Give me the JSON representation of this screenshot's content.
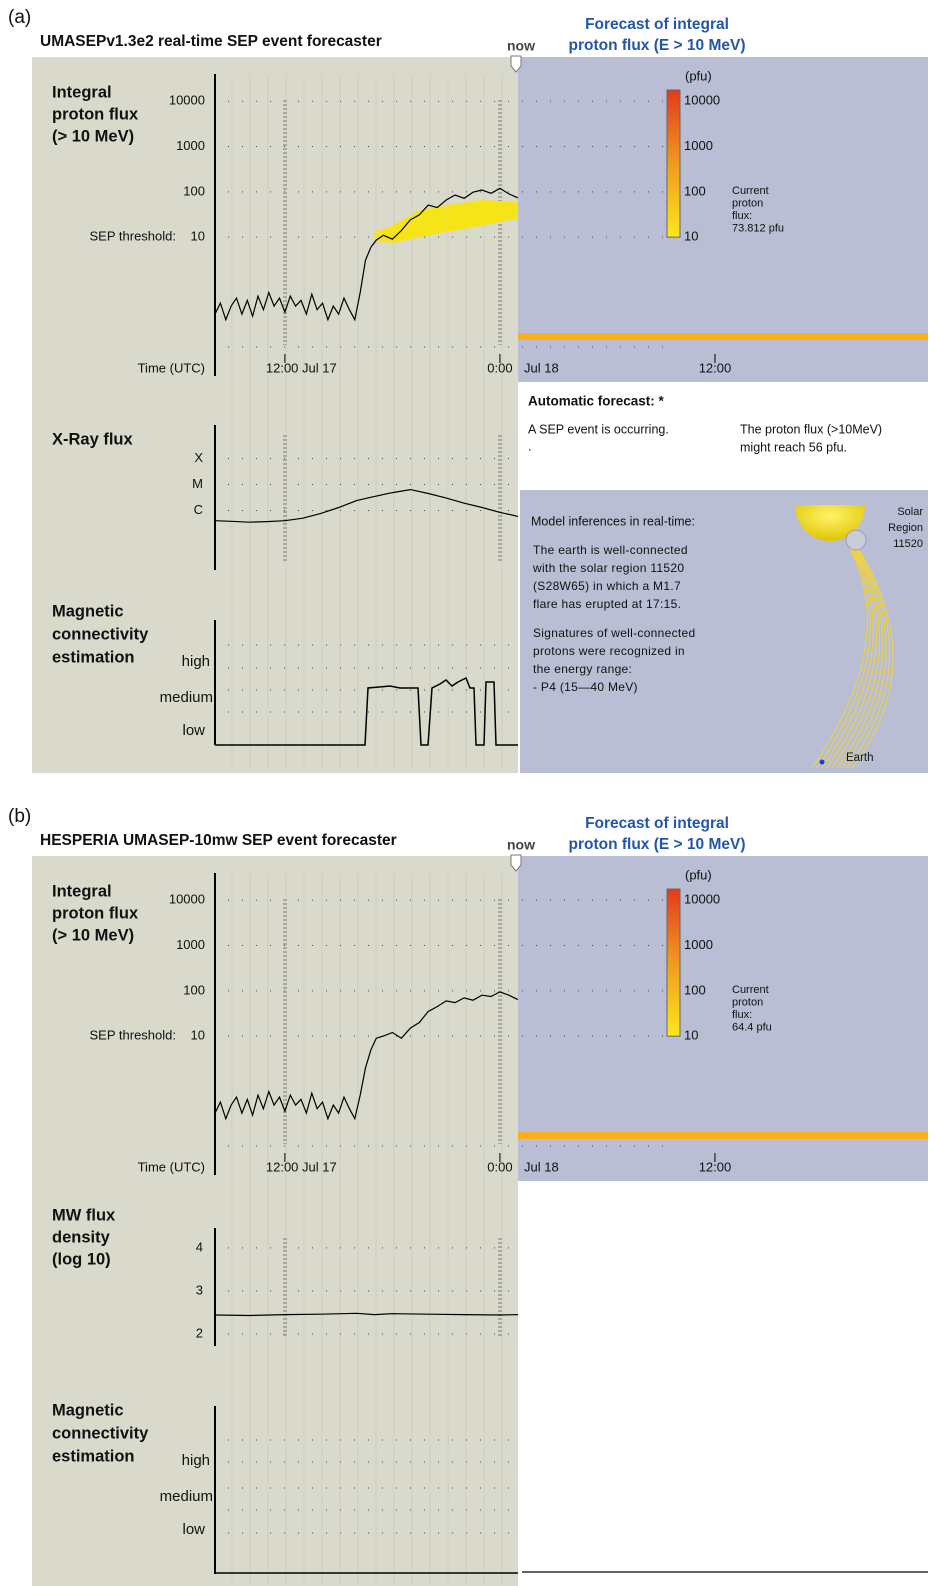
{
  "panels": [
    {
      "label": "(a)",
      "title": "UMASEPv1.3e2 real-time SEP event forecaster",
      "now_label": "now",
      "forecast_title": [
        "Forecast of integral",
        "proton flux (E > 10 MeV)"
      ],
      "flux_chart": {
        "type": "line",
        "ylabel": [
          "Integral",
          "proton flux",
          "(> 10 MeV)"
        ],
        "threshold_label": "SEP threshold:",
        "xlabel": "Time (UTC)",
        "log_scale": true,
        "ylim": [
          0.01,
          40000
        ],
        "yticks": [
          10000,
          1000,
          100,
          10
        ],
        "xlim": [
          8.1,
          48
        ],
        "xticks": [
          {
            "value": 12,
            "label": "12:00 Jul 17"
          },
          {
            "value": 24,
            "label": "0:00"
          },
          {
            "value": 36,
            "label": "12:00"
          }
        ],
        "date_label": "Jul 18",
        "color": "#000000",
        "x": [
          8.1,
          8.4,
          8.7,
          9.0,
          9.3,
          9.6,
          9.9,
          10.2,
          10.5,
          10.8,
          11.1,
          11.4,
          11.7,
          12.0,
          12.3,
          12.6,
          12.9,
          13.2,
          13.5,
          13.8,
          14.1,
          14.4,
          14.7,
          15.0,
          15.3,
          15.6,
          15.9,
          16.2,
          16.5,
          16.8,
          17.1,
          17.5,
          18.0,
          18.5,
          19.0,
          19.5,
          20.0,
          20.5,
          21.0,
          21.5,
          22.0,
          22.5,
          23.0,
          23.5,
          24.0,
          24.5,
          25.0
        ],
        "values": [
          0.2,
          0.35,
          0.15,
          0.3,
          0.45,
          0.2,
          0.4,
          0.18,
          0.5,
          0.25,
          0.6,
          0.3,
          0.45,
          0.22,
          0.5,
          0.3,
          0.4,
          0.2,
          0.55,
          0.25,
          0.35,
          0.15,
          0.3,
          0.2,
          0.45,
          0.25,
          0.15,
          0.6,
          3.1,
          6,
          8.6,
          11,
          9,
          14,
          24,
          31,
          51,
          45,
          66,
          85,
          72,
          98,
          110,
          93,
          120,
          90,
          74
        ],
        "forecast_band": {
          "color": "#f5e418",
          "x": [
            17,
            18,
            19.5,
            21,
            23,
            25
          ],
          "low": [
            8.6,
            7.4,
            10,
            13,
            18,
            26
          ],
          "high": [
            13,
            18,
            39,
            51,
            66,
            59
          ]
        }
      },
      "colorbar": {
        "unit": "(pfu)",
        "ticks": [
          10000,
          1000,
          100,
          10
        ]
      },
      "current_flux": [
        "Current",
        "proton",
        "flux:",
        "73.812 pfu"
      ],
      "second_chart": {
        "type": "line",
        "ylabel": [
          "X-Ray flux"
        ],
        "log_scale": true,
        "ylim": [
          5e-09,
          0.002
        ],
        "yticks": [
          {
            "value": 0.0001,
            "label": "X"
          },
          {
            "value": 1e-05,
            "label": "M"
          },
          {
            "value": 1e-06,
            "label": "C"
          }
        ],
        "xlim": [
          8.1,
          25
        ],
        "color": "#000000",
        "x": [
          8.1,
          9,
          10,
          11,
          12,
          13,
          14,
          15,
          16,
          17,
          18,
          19,
          20,
          21,
          22,
          23,
          24,
          25
        ],
        "values": [
          4e-07,
          3.8e-07,
          3.5e-07,
          3.7e-07,
          4e-07,
          5e-07,
          7.7e-07,
          1.3e-06,
          2.4e-06,
          3.5e-06,
          4.9e-06,
          6.4e-06,
          4.5e-06,
          3e-06,
          1.9e-06,
          1.3e-06,
          8.4e-07,
          5.9e-07
        ]
      },
      "connectivity": {
        "ylabel": [
          "Magnetic",
          "connectivity",
          "estimation"
        ],
        "levels": [
          "high",
          "medium",
          "low"
        ]
      },
      "automatic_forecast": {
        "heading": "Automatic forecast: *",
        "status": [
          "A SEP event is occurring.",
          "."
        ],
        "prediction": [
          "The proton flux (>10MeV)",
          "might reach 56 pfu."
        ]
      },
      "inferences": {
        "heading": "Model inferences in real-time:",
        "paragraphs": [
          [
            "The earth is well-connected",
            "with the solar region 11520",
            "(S28W65) in which a M1.7",
            "flare has erupted at 17:15."
          ],
          [
            "Signatures of well-connected",
            "protons were recognized in",
            "the energy range:",
            "- P4 (15—40 MeV)"
          ]
        ],
        "solar_region": [
          "Solar",
          "Region",
          "11520"
        ],
        "earth": "Earth"
      }
    },
    {
      "label": "(b)",
      "title": "HESPERIA UMASEP-10mw SEP event forecaster",
      "now_label": "now",
      "forecast_title": [
        "Forecast of integral",
        "proton flux (E > 10 MeV)"
      ],
      "flux_chart": {
        "type": "line",
        "ylabel": [
          "Integral",
          "proton flux",
          "(> 10 MeV)"
        ],
        "threshold_label": "SEP threshold:",
        "xlabel": "Time (UTC)",
        "log_scale": true,
        "ylim": [
          0.01,
          40000
        ],
        "yticks": [
          10000,
          1000,
          100,
          10
        ],
        "xlim": [
          8.1,
          48
        ],
        "xticks": [
          {
            "value": 12,
            "label": "12:00 Jul 17"
          },
          {
            "value": 24,
            "label": "0:00"
          },
          {
            "value": 36,
            "label": "12:00"
          }
        ],
        "date_label": "Jul 18",
        "color": "#000000",
        "x": [
          8.1,
          8.4,
          8.7,
          9.0,
          9.3,
          9.6,
          9.9,
          10.2,
          10.5,
          10.8,
          11.1,
          11.4,
          11.7,
          12.0,
          12.3,
          12.6,
          12.9,
          13.2,
          13.5,
          13.8,
          14.1,
          14.4,
          14.7,
          15.0,
          15.3,
          15.6,
          15.9,
          16.2,
          16.5,
          16.8,
          17.1,
          17.5,
          18.0,
          18.5,
          19.0,
          19.5,
          20.0,
          20.5,
          21.0,
          21.5,
          22.0,
          22.5,
          23.0,
          23.5,
          24.0,
          24.5,
          25.0
        ],
        "values": [
          0.2,
          0.35,
          0.15,
          0.3,
          0.45,
          0.2,
          0.4,
          0.18,
          0.5,
          0.25,
          0.6,
          0.3,
          0.45,
          0.22,
          0.5,
          0.3,
          0.4,
          0.2,
          0.55,
          0.25,
          0.35,
          0.15,
          0.3,
          0.2,
          0.45,
          0.25,
          0.15,
          0.5,
          2,
          5,
          9,
          10,
          12,
          9,
          15,
          20,
          35,
          45,
          60,
          55,
          70,
          62,
          80,
          75,
          95,
          80,
          64
        ]
      },
      "colorbar": {
        "unit": "(pfu)",
        "ticks": [
          10000,
          1000,
          100,
          10
        ]
      },
      "current_flux": [
        "Current",
        "proton",
        "flux:",
        "64.4 pfu"
      ],
      "second_chart": {
        "type": "line",
        "ylabel": [
          "MW flux",
          "density",
          "(log 10)"
        ],
        "log_scale": false,
        "ylim": [
          1.72,
          4.44
        ],
        "yticks": [
          4,
          3,
          2
        ],
        "xlim": [
          8.1,
          25
        ],
        "color": "#000000",
        "x": [
          8.1,
          10,
          12,
          14,
          16,
          17,
          18,
          20,
          22,
          24,
          25
        ],
        "values": [
          2.44,
          2.43,
          2.45,
          2.46,
          2.48,
          2.45,
          2.47,
          2.46,
          2.45,
          2.44,
          2.45
        ]
      },
      "connectivity": {
        "ylabel": [
          "Magnetic",
          "connectivity",
          "estimation"
        ],
        "levels": [
          "high",
          "medium",
          "low"
        ]
      }
    }
  ]
}
